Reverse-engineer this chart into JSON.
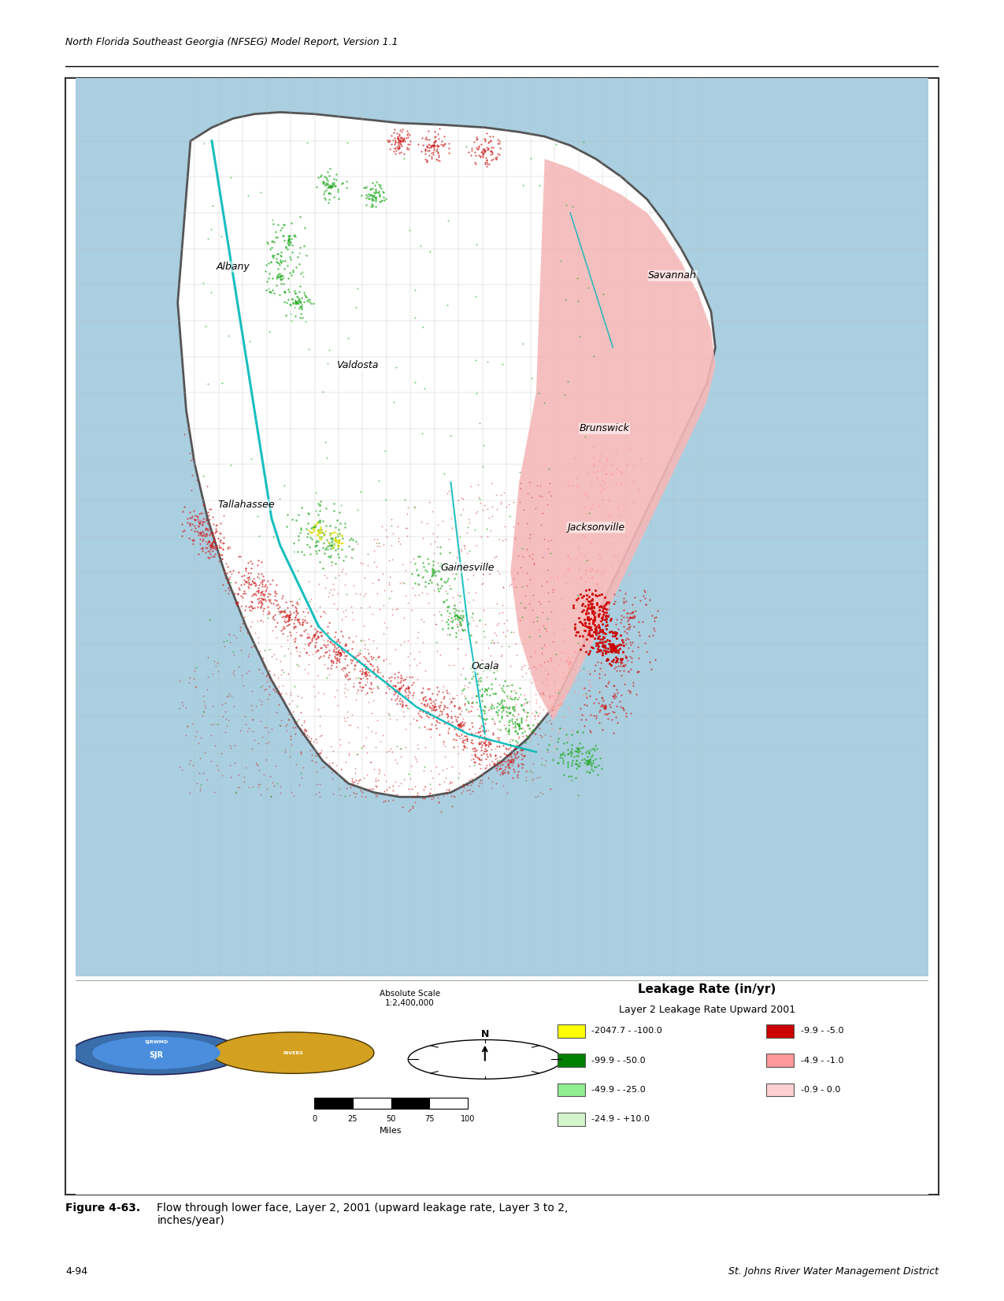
{
  "header_text": "North Florida Southeast Georgia (NFSEG) Model Report, Version 1.1",
  "footer_left": "4-94",
  "footer_right": "St. Johns River Water Management District",
  "caption_bold": "Figure 4-63.",
  "caption_normal": "Flow through lower face, Layer 2, 2001 (upward leakage rate, Layer 3 to 2,\ninches/year)",
  "legend_title": "Leakage Rate (in/yr)",
  "legend_subtitle": "Layer 2 Leakage Rate Upward 2001",
  "scale_text": "Absolute Scale\n1:2,400,000",
  "scale_label": "Miles",
  "scale_ticks": [
    "0",
    "25",
    "50",
    "75",
    "100"
  ],
  "legend_items_left": [
    {
      "label": "-2047.7 - -100.0",
      "color": "#ffff00"
    },
    {
      "label": "-99.9 - -50.0",
      "color": "#008000"
    },
    {
      "label": "-49.9 - -25.0",
      "color": "#90ee90"
    },
    {
      "label": "-24.9 - +10.0",
      "color": "#d4f5cc"
    }
  ],
  "legend_items_right": [
    {
      "label": "-9.9 - -5.0",
      "color": "#cc0000"
    },
    {
      "label": "-4.9 - -1.0",
      "color": "#ff9999"
    },
    {
      "label": "-0.9 - 0.0",
      "color": "#ffd0d0"
    }
  ],
  "ocean_color": "#aacfe0",
  "gulf_color": "#aacfe0",
  "land_color": "#ffffff",
  "border_color": "#555555",
  "county_color": "#bbbbbb",
  "pink_region_color": "#f5b8b8",
  "dark_red_color": "#cc0000",
  "cyan_color": "#00b8b8",
  "red_dot_color": "#cc2222",
  "green_dot_color": "#22aa22",
  "yellow_dot_color": "#dddd00",
  "light_pink_stripe": "#f0c0c0",
  "city_font_size": 9,
  "label_font_size": 8,
  "header_font_size": 9,
  "caption_font_size": 10,
  "footer_font_size": 9,
  "legend_title_font_size": 11,
  "legend_sub_font_size": 9
}
